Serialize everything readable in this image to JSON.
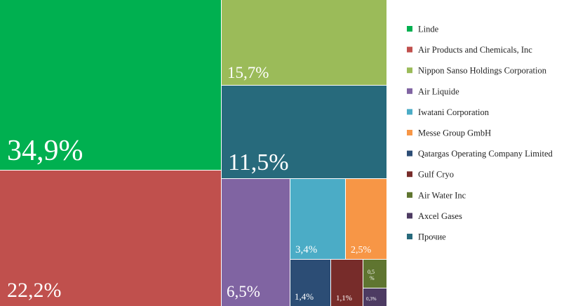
{
  "chart_data": {
    "type": "treemap",
    "categories": [
      "Linde",
      "Air Products and Chemicals, Inc",
      "Nippon Sanso Holdings Corporation",
      "Air Liquide",
      "Iwatani Corporation",
      "Messe Group GmbH",
      "Qatargas Operating Company Limited",
      "Gulf Cryo",
      "Air Water Inc",
      "Axcel Gases",
      "Прочие"
    ],
    "values": [
      34.9,
      22.2,
      15.7,
      6.5,
      3.4,
      2.5,
      1.4,
      1.1,
      0.5,
      0.3,
      11.5
    ],
    "value_labels": [
      "34,9%",
      "22,2%",
      "15,7%",
      "6,5%",
      "3,4%",
      "2,5%",
      "1,4%",
      "1,1%",
      "0,5 %",
      "0,3%",
      "11,5%"
    ],
    "colors": [
      "#00b050",
      "#c0504d",
      "#9bbb59",
      "#8064a2",
      "#4bacc6",
      "#f79646",
      "#2c4d75",
      "#772c2a",
      "#5f7530",
      "#4d3b62",
      "#276a7c"
    ],
    "legend_position": "right"
  }
}
